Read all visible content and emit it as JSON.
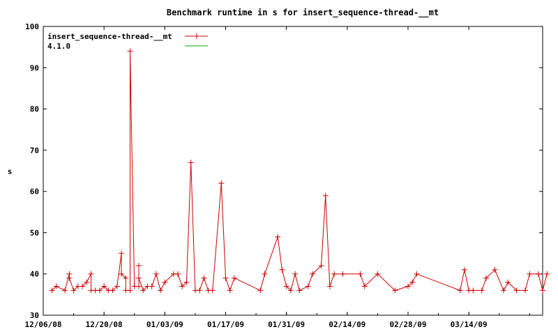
{
  "chart_data": {
    "type": "line",
    "title": "Benchmark runtime in s for insert_sequence-thread-__mt",
    "xlabel": "",
    "ylabel": "s",
    "ylim": [
      30,
      100
    ],
    "xlim": [
      "2008-12-06",
      "2009-03-31"
    ],
    "yticks": [
      "30",
      "40",
      "50",
      "60",
      "70",
      "80",
      "90",
      "100"
    ],
    "xticks": [
      {
        "label": "12/06/08",
        "date": "2008-12-06"
      },
      {
        "label": "12/20/08",
        "date": "2008-12-20"
      },
      {
        "label": "01/03/09",
        "date": "2009-01-03"
      },
      {
        "label": "01/17/09",
        "date": "2009-01-17"
      },
      {
        "label": "01/31/09",
        "date": "2009-01-31"
      },
      {
        "label": "02/14/09",
        "date": "2009-02-14"
      },
      {
        "label": "02/28/09",
        "date": "2009-02-28"
      },
      {
        "label": "03/14/09",
        "date": "2009-03-14"
      }
    ],
    "legend_position": "top-left",
    "grid": false,
    "series": [
      {
        "name": "insert_sequence-thread-__mt",
        "color": "#cc0000",
        "marker": "plus",
        "points": [
          [
            "2008-12-08",
            36
          ],
          [
            "2008-12-09",
            37
          ],
          [
            "2008-12-11",
            36
          ],
          [
            "2008-12-12",
            40
          ],
          [
            "2008-12-12",
            39
          ],
          [
            "2008-12-13",
            36
          ],
          [
            "2008-12-14",
            37
          ],
          [
            "2008-12-15",
            37
          ],
          [
            "2008-12-16",
            38
          ],
          [
            "2008-12-17",
            40
          ],
          [
            "2008-12-17",
            36
          ],
          [
            "2008-12-18",
            36
          ],
          [
            "2008-12-19",
            36
          ],
          [
            "2008-12-20",
            37
          ],
          [
            "2008-12-21",
            36
          ],
          [
            "2008-12-22",
            36
          ],
          [
            "2008-12-23",
            37
          ],
          [
            "2008-12-24",
            45
          ],
          [
            "2008-12-24",
            40
          ],
          [
            "2008-12-25",
            39
          ],
          [
            "2008-12-25",
            36
          ],
          [
            "2008-12-26",
            36
          ],
          [
            "2008-12-26",
            94
          ],
          [
            "2008-12-27",
            37
          ],
          [
            "2008-12-28",
            37
          ],
          [
            "2008-12-28",
            42
          ],
          [
            "2008-12-28",
            39
          ],
          [
            "2008-12-29",
            36
          ],
          [
            "2008-12-30",
            37
          ],
          [
            "2008-12-31",
            37
          ],
          [
            "2009-01-01",
            40
          ],
          [
            "2009-01-02",
            36
          ],
          [
            "2009-01-03",
            38
          ],
          [
            "2009-01-05",
            40
          ],
          [
            "2009-01-06",
            40
          ],
          [
            "2009-01-07",
            37
          ],
          [
            "2009-01-08",
            38
          ],
          [
            "2009-01-09",
            67
          ],
          [
            "2009-01-10",
            36
          ],
          [
            "2009-01-11",
            36
          ],
          [
            "2009-01-12",
            39
          ],
          [
            "2009-01-13",
            36
          ],
          [
            "2009-01-14",
            36
          ],
          [
            "2009-01-16",
            62
          ],
          [
            "2009-01-17",
            39
          ],
          [
            "2009-01-18",
            36
          ],
          [
            "2009-01-19",
            39
          ],
          [
            "2009-01-25",
            36
          ],
          [
            "2009-01-26",
            40
          ],
          [
            "2009-01-29",
            49
          ],
          [
            "2009-01-30",
            41
          ],
          [
            "2009-01-31",
            37
          ],
          [
            "2009-02-01",
            36
          ],
          [
            "2009-02-02",
            40
          ],
          [
            "2009-02-03",
            36
          ],
          [
            "2009-02-05",
            37
          ],
          [
            "2009-02-06",
            40
          ],
          [
            "2009-02-08",
            42
          ],
          [
            "2009-02-09",
            59
          ],
          [
            "2009-02-10",
            37
          ],
          [
            "2009-02-11",
            40
          ],
          [
            "2009-02-13",
            40
          ],
          [
            "2009-02-17",
            40
          ],
          [
            "2009-02-18",
            37
          ],
          [
            "2009-02-21",
            40
          ],
          [
            "2009-02-25",
            36
          ],
          [
            "2009-02-28",
            37
          ],
          [
            "2009-03-01",
            38
          ],
          [
            "2009-03-02",
            40
          ],
          [
            "2009-03-12",
            36
          ],
          [
            "2009-03-13",
            41
          ],
          [
            "2009-03-14",
            36
          ],
          [
            "2009-03-15",
            36
          ],
          [
            "2009-03-17",
            36
          ],
          [
            "2009-03-18",
            39
          ],
          [
            "2009-03-20",
            41
          ],
          [
            "2009-03-22",
            36
          ],
          [
            "2009-03-23",
            38
          ],
          [
            "2009-03-25",
            36
          ],
          [
            "2009-03-27",
            36
          ],
          [
            "2009-03-28",
            40
          ],
          [
            "2009-03-30",
            40
          ],
          [
            "2009-03-31",
            36
          ],
          [
            "2009-04-01",
            40
          ]
        ]
      },
      {
        "name": "4.1.0",
        "color": "#00aa00",
        "marker": "none",
        "points": []
      }
    ]
  }
}
